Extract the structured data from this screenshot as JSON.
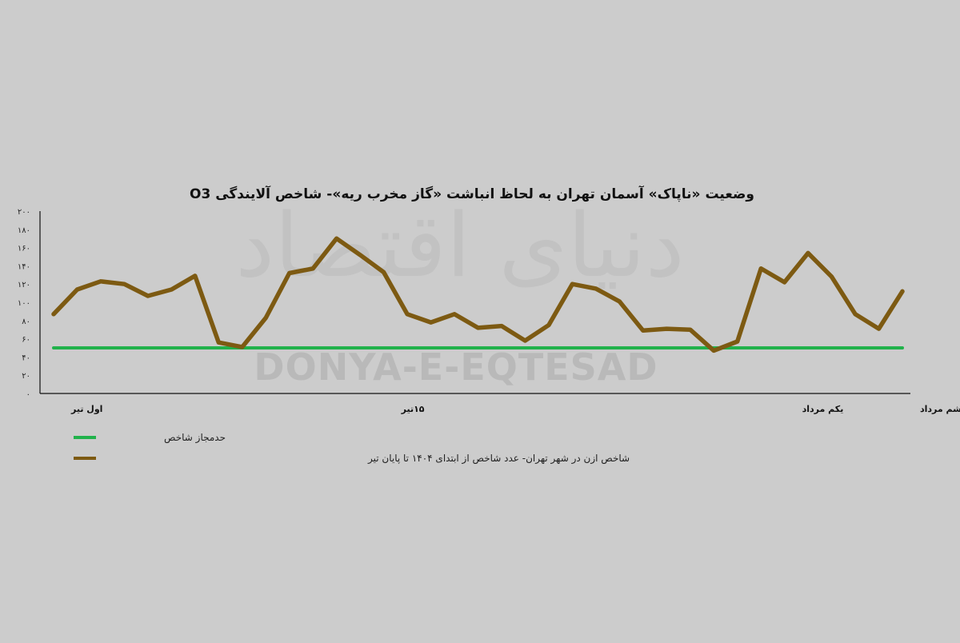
{
  "chart_data": {
    "type": "line",
    "title": "وضعیت «ناپاک» آسمان تهران به لحاظ انباشت «گاز مخرب ریه»- شاخص آلایندگی O3",
    "ylim": [
      0,
      200
    ],
    "yticks": [
      0,
      20,
      40,
      60,
      80,
      100,
      120,
      140,
      160,
      180,
      200
    ],
    "ytick_labels": [
      "۰",
      "۲۰",
      "۴۰",
      "۶۰",
      "۸۰",
      "۱۰۰",
      "۱۲۰",
      "۱۴۰",
      "۱۶۰",
      "۱۸۰",
      "۲۰۰"
    ],
    "x_count": 37,
    "x_tick_labels": [
      {
        "index": 0,
        "label": "اول تیر"
      },
      {
        "index": 14,
        "label": "۱۵تیر"
      },
      {
        "index": 31,
        "label": "یکم مرداد"
      },
      {
        "index": 36,
        "label": "ششم مرداد"
      }
    ],
    "series": [
      {
        "name": "حدمجاز شاخص",
        "color": "#21b24b",
        "values": [
          50,
          50,
          50,
          50,
          50,
          50,
          50,
          50,
          50,
          50,
          50,
          50,
          50,
          50,
          50,
          50,
          50,
          50,
          50,
          50,
          50,
          50,
          50,
          50,
          50,
          50,
          50,
          50,
          50,
          50,
          50,
          50,
          50,
          50,
          50,
          50,
          50
        ]
      },
      {
        "name": "شاخص ازن در شهر تهران- عدد شاخص از ابتدای ۱۴۰۴ تا پایان تیر",
        "color": "#7d5a12",
        "values": [
          87,
          114,
          123,
          120,
          107,
          114,
          129,
          56,
          51,
          83,
          132,
          137,
          170,
          152,
          133,
          87,
          78,
          87,
          72,
          74,
          58,
          75,
          120,
          115,
          101,
          69,
          71,
          70,
          47,
          57,
          137,
          122,
          154,
          128,
          87,
          71,
          112
        ]
      }
    ],
    "legend_position": "bottom",
    "grid": false,
    "watermark": {
      "text": "DONYA-E-EQTESAD",
      "logo_text": "دنیای اقتصاد"
    }
  }
}
